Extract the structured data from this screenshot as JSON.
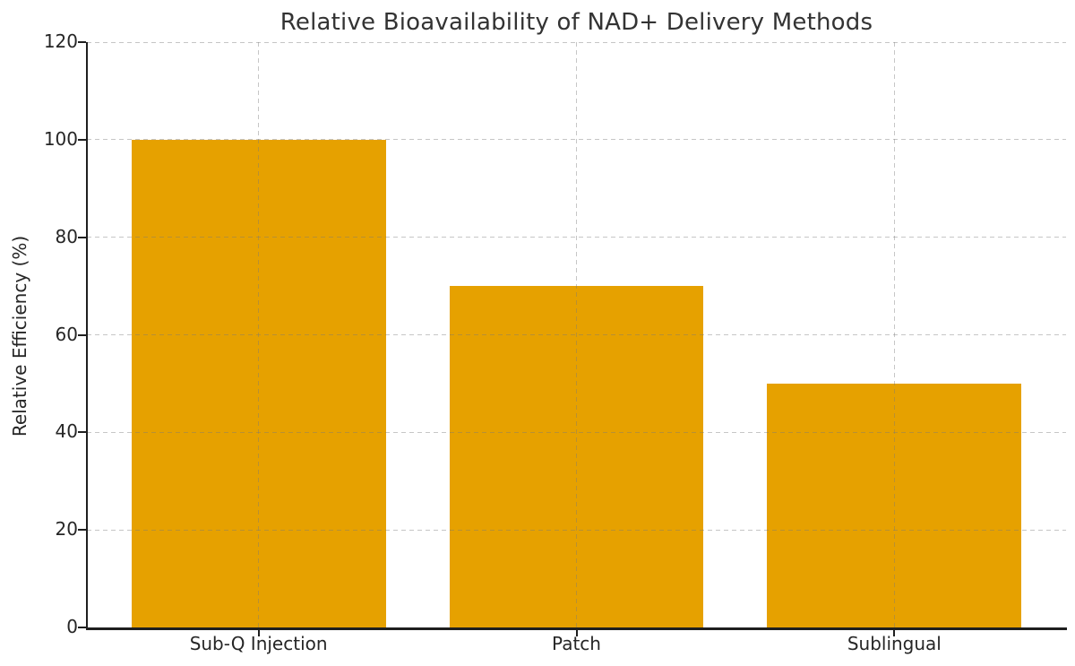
{
  "chart_data": {
    "type": "bar",
    "title": "Relative Bioavailability of NAD+ Delivery Methods",
    "categories": [
      "Sub-Q Injection",
      "Patch",
      "Sublingual"
    ],
    "values": [
      100,
      70,
      50
    ],
    "xlabel": "",
    "ylabel": "Relative Efficiency (%)",
    "ylim": [
      0,
      120
    ],
    "yticks": [
      0,
      20,
      40,
      60,
      80,
      100,
      120
    ],
    "bar_color": "#E6A100",
    "text_color": "#262626",
    "title_color": "#333333",
    "spine_color": "#1f1f1f",
    "grid_style": "dashed gray, horizontal at each ytick and vertical at each bar center, drawn over bars",
    "legend": null
  }
}
